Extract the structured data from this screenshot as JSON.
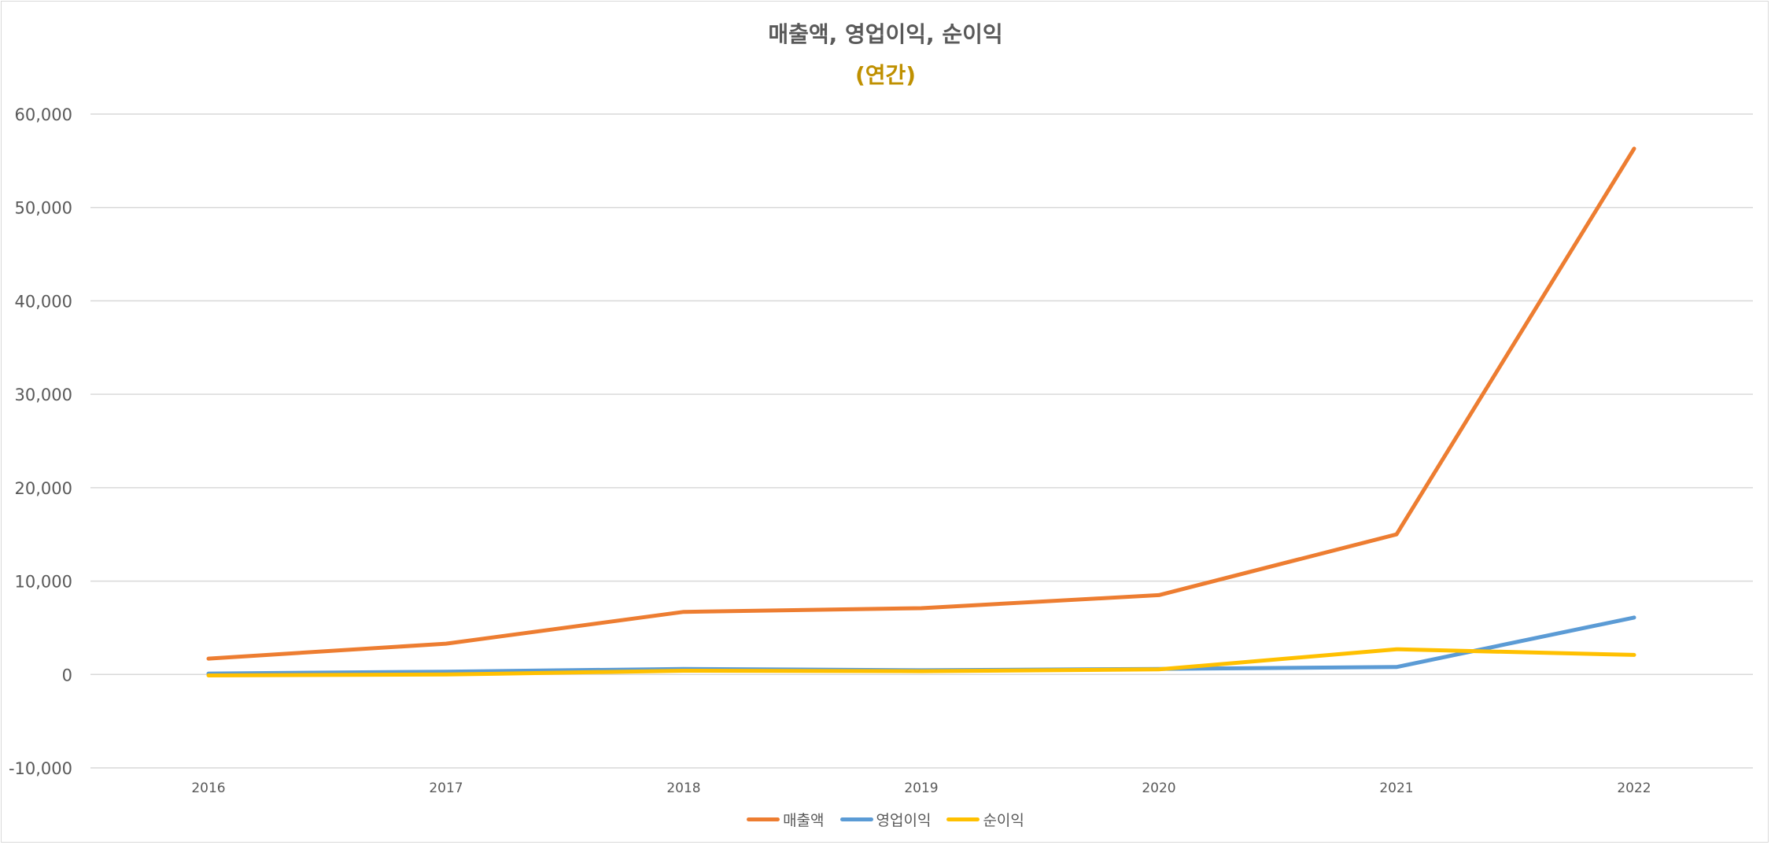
{
  "chart_data": {
    "type": "line",
    "title": "매출액, 영업이익, 순이익",
    "subtitle": "(연간)",
    "subtitle_color": "#bf9000",
    "categories": [
      "2016",
      "2017",
      "2018",
      "2019",
      "2020",
      "2021",
      "2022"
    ],
    "ylim": [
      -10000,
      60000
    ],
    "yticks": [
      -10000,
      0,
      10000,
      20000,
      30000,
      40000,
      50000,
      60000
    ],
    "ytick_labels": [
      "-10,000",
      "0",
      "10,000",
      "20,000",
      "30,000",
      "40,000",
      "50,000",
      "60,000"
    ],
    "grid": true,
    "legend_position": "bottom",
    "series": [
      {
        "name": "매출액",
        "color": "#ed7d31",
        "values": [
          1700,
          3300,
          6700,
          7100,
          8500,
          15000,
          56300
        ]
      },
      {
        "name": "영업이익",
        "color": "#5b9bd5",
        "values": [
          100,
          300,
          600,
          450,
          600,
          800,
          6100
        ]
      },
      {
        "name": "순이익",
        "color": "#ffc000",
        "values": [
          -100,
          0,
          400,
          350,
          550,
          2700,
          2100
        ]
      }
    ]
  }
}
